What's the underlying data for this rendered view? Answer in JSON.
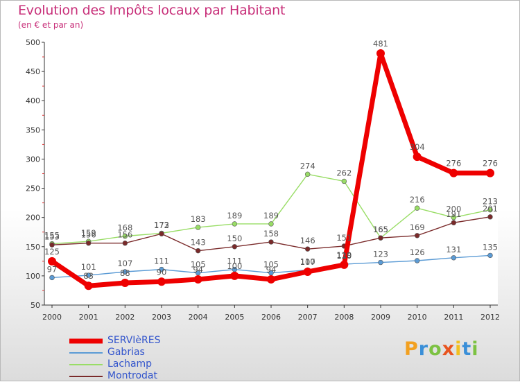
{
  "header": {
    "title": "Evolution des Impôts locaux par Habitant",
    "subtitle": "(en € et par an)"
  },
  "chart_data": {
    "type": "line",
    "title": "Evolution des Impôts locaux par Habitant",
    "subtitle": "(en € et par an)",
    "xlabel": "",
    "ylabel": "",
    "categories": [
      "2000",
      "2001",
      "2002",
      "2003",
      "2004",
      "2005",
      "2006",
      "2007",
      "2008",
      "2009",
      "2010",
      "2011",
      "2012"
    ],
    "ylim": [
      50,
      500
    ],
    "yticks": [
      50,
      100,
      150,
      200,
      250,
      300,
      350,
      400,
      450,
      500
    ],
    "grid": false,
    "legend_position": "bottom-left",
    "series": [
      {
        "name": "SERVIèRES",
        "color": "#ee0000",
        "values": [
          125,
          83,
          88,
          90,
          94,
          100,
          94,
          107,
          119,
          481,
          304,
          276,
          276
        ]
      },
      {
        "name": "Gabrias",
        "color": "#5b9bd5",
        "values": [
          97,
          101,
          107,
          111,
          105,
          111,
          105,
          110,
          120,
          123,
          126,
          131,
          135
        ]
      },
      {
        "name": "Lachamp",
        "color": "#99dd66",
        "values": [
          155,
          159,
          168,
          173,
          183,
          189,
          189,
          274,
          262,
          165,
          216,
          200,
          213
        ]
      },
      {
        "name": "Montrodat",
        "color": "#7a2a2a",
        "values": [
          153,
          156,
          156,
          172,
          143,
          150,
          158,
          146,
          151,
          165,
          169,
          191,
          201
        ]
      }
    ]
  },
  "legend": {
    "items": [
      "SERVIèRES",
      "Gabrias",
      "Lachamp",
      "Montrodat"
    ]
  },
  "logo": {
    "letters": [
      "P",
      "r",
      "o",
      "x",
      "i",
      "t",
      "i"
    ],
    "colors": [
      "#f2a020",
      "#3a8fd8",
      "#7cc242",
      "#e8541f",
      "#f2c020",
      "#3a8fd8",
      "#7cc242"
    ]
  }
}
